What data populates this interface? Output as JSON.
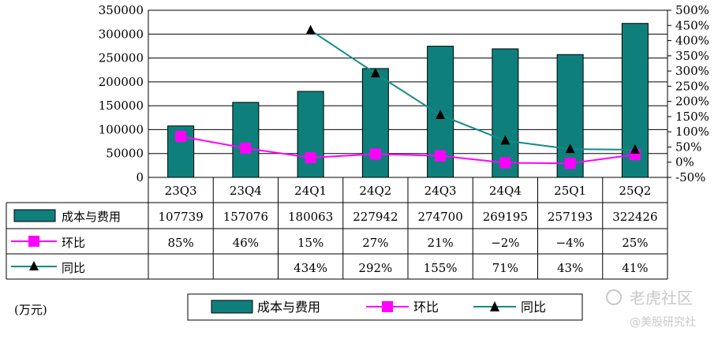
{
  "chart_data": {
    "type": "bar+line",
    "categories": [
      "23Q3",
      "23Q4",
      "24Q1",
      "24Q2",
      "24Q3",
      "24Q4",
      "25Q1",
      "25Q2"
    ],
    "series": [
      {
        "name": "成本与费用",
        "type": "bar",
        "axis": "left",
        "values": [
          107739,
          157076,
          180063,
          227942,
          274700,
          269195,
          257193,
          322426
        ],
        "labels": [
          "107739",
          "157076",
          "180063",
          "227942",
          "274700",
          "269195",
          "257193",
          "322426"
        ],
        "color": "#0f7f7c"
      },
      {
        "name": "环比",
        "type": "line",
        "axis": "right",
        "values": [
          85,
          46,
          15,
          27,
          21,
          -2,
          -4,
          25
        ],
        "labels": [
          "85%",
          "46%",
          "15%",
          "27%",
          "21%",
          "−2%",
          "−4%",
          "25%"
        ],
        "color": "#ff00ff",
        "marker": "square"
      },
      {
        "name": "同比",
        "type": "line",
        "axis": "right",
        "values": [
          null,
          null,
          434,
          292,
          155,
          71,
          43,
          41
        ],
        "labels": [
          "",
          "",
          "434%",
          "292%",
          "155%",
          "71%",
          "43%",
          "41%"
        ],
        "color": "#138a8a",
        "marker": "triangle"
      }
    ],
    "y_left": {
      "min": 0,
      "max": 350000,
      "ticks": [
        "0",
        "50000",
        "100000",
        "150000",
        "200000",
        "250000",
        "300000",
        "350000"
      ]
    },
    "y_right": {
      "min": -50,
      "max": 500,
      "ticks": [
        "-50%",
        "0%",
        "50%",
        "100%",
        "150%",
        "200%",
        "250%",
        "300%",
        "350%",
        "400%",
        "450%",
        "500%"
      ]
    },
    "unit_note": "(万元)",
    "grid": "horizontal",
    "legend_position": "bottom"
  },
  "watermark": {
    "brand": "老虎社区",
    "sub": "@美股研究社"
  }
}
